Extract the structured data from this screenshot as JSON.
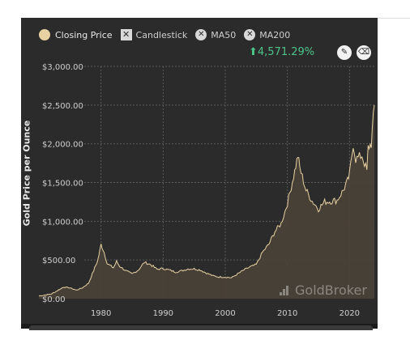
{
  "legend": [
    {
      "label": "Closing Price",
      "icon": "circle-swatch-icon",
      "color": "#e8d2a3",
      "active": true
    },
    {
      "label": "Candlestick",
      "icon": "x-box-icon",
      "active": false
    },
    {
      "label": "MA50",
      "icon": "x-circle-icon",
      "active": false
    },
    {
      "label": "MA200",
      "icon": "x-circle-icon",
      "active": false
    }
  ],
  "change": {
    "arrow": "⬆",
    "value": "4,571.29%",
    "color": "#4cc38a"
  },
  "tools": [
    {
      "icon": "pencil-icon",
      "glyph": "✎"
    },
    {
      "icon": "eraser-icon",
      "glyph": "⌫"
    }
  ],
  "watermark": "GoldBroker",
  "chart_data": {
    "type": "area",
    "title": "",
    "xlabel": "",
    "ylabel": "Gold Price per Ounce",
    "ylim": [
      0,
      3000
    ],
    "xlim": [
      1970,
      2024
    ],
    "y_ticks": [
      {
        "value": 0,
        "label": "$0.00"
      },
      {
        "value": 500,
        "label": "$500.00"
      },
      {
        "value": 1000,
        "label": "$1,000.00"
      },
      {
        "value": 1500,
        "label": "$1,500.00"
      },
      {
        "value": 2000,
        "label": "$2,000.00"
      },
      {
        "value": 2500,
        "label": "$2,500.00"
      },
      {
        "value": 3000,
        "label": "$3,000.00"
      }
    ],
    "x_ticks": [
      {
        "value": 1980,
        "label": "1980"
      },
      {
        "value": 1990,
        "label": "1990"
      },
      {
        "value": 2000,
        "label": "2000"
      },
      {
        "value": 2010,
        "label": "2010"
      },
      {
        "value": 2020,
        "label": "2020"
      }
    ],
    "grid": true,
    "legend_position": "top-left",
    "line_color": "#e8d2a3",
    "fill_color": "#4a4238",
    "series": [
      {
        "name": "Closing Price",
        "x": [
          1970,
          1972,
          1974,
          1975,
          1976,
          1977,
          1978,
          1979,
          1979.5,
          1980,
          1980.5,
          1981,
          1982,
          1982.5,
          1983,
          1984,
          1985,
          1986,
          1987,
          1988,
          1989,
          1990,
          1991,
          1992,
          1993,
          1994,
          1995,
          1996,
          1997,
          1998,
          1999,
          2000,
          2001,
          2002,
          2003,
          2004,
          2005,
          2006,
          2007,
          2008,
          2009,
          2010,
          2011,
          2011.7,
          2012,
          2013,
          2014,
          2015,
          2016,
          2017,
          2018,
          2019,
          2019.7,
          2020,
          2020.6,
          2021,
          2022,
          2022.8,
          2023,
          2023.5,
          2024
        ],
        "y": [
          35,
          60,
          150,
          140,
          110,
          140,
          200,
          400,
          500,
          700,
          600,
          450,
          400,
          480,
          420,
          360,
          320,
          370,
          470,
          440,
          380,
          390,
          370,
          345,
          360,
          385,
          385,
          370,
          330,
          295,
          280,
          280,
          270,
          320,
          370,
          410,
          440,
          600,
          700,
          870,
          970,
          1230,
          1580,
          1850,
          1690,
          1400,
          1260,
          1160,
          1250,
          1260,
          1270,
          1400,
          1520,
          1600,
          2000,
          1800,
          1850,
          1650,
          1950,
          2000,
          2500
        ]
      }
    ]
  }
}
